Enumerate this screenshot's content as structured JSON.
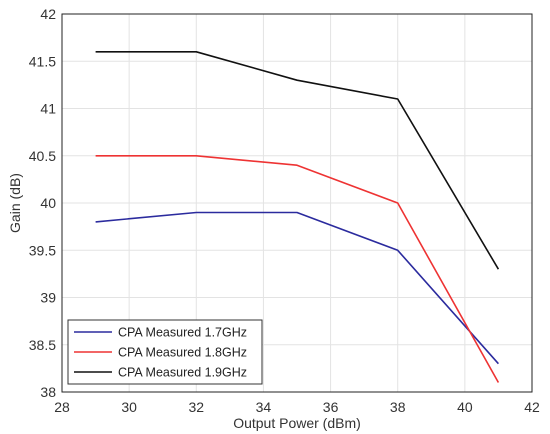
{
  "chart_data": {
    "type": "line",
    "xlabel": "Output Power (dBm)",
    "ylabel": "Gain (dB)",
    "xlim": [
      28,
      42
    ],
    "ylim": [
      38,
      42
    ],
    "xticks": [
      28,
      30,
      32,
      34,
      36,
      38,
      40,
      42
    ],
    "yticks": [
      38,
      38.5,
      39,
      39.5,
      40,
      40.5,
      41,
      41.5,
      42
    ],
    "grid": true,
    "legend_position": "bottom-left",
    "series": [
      {
        "name": "CPA Measured 1.7GHz",
        "color": "#2b2b9e",
        "x": [
          29,
          32,
          35,
          38,
          41
        ],
        "y": [
          39.8,
          39.9,
          39.9,
          39.5,
          38.3
        ]
      },
      {
        "name": "CPA Measured 1.8GHz",
        "color": "#ee3333",
        "x": [
          29,
          32,
          35,
          38,
          41
        ],
        "y": [
          40.5,
          40.5,
          40.4,
          40.0,
          38.1
        ]
      },
      {
        "name": "CPA Measured 1.9GHz",
        "color": "#111111",
        "x": [
          29,
          32,
          35,
          38,
          41
        ],
        "y": [
          41.6,
          41.6,
          41.3,
          41.1,
          39.3
        ]
      }
    ]
  }
}
